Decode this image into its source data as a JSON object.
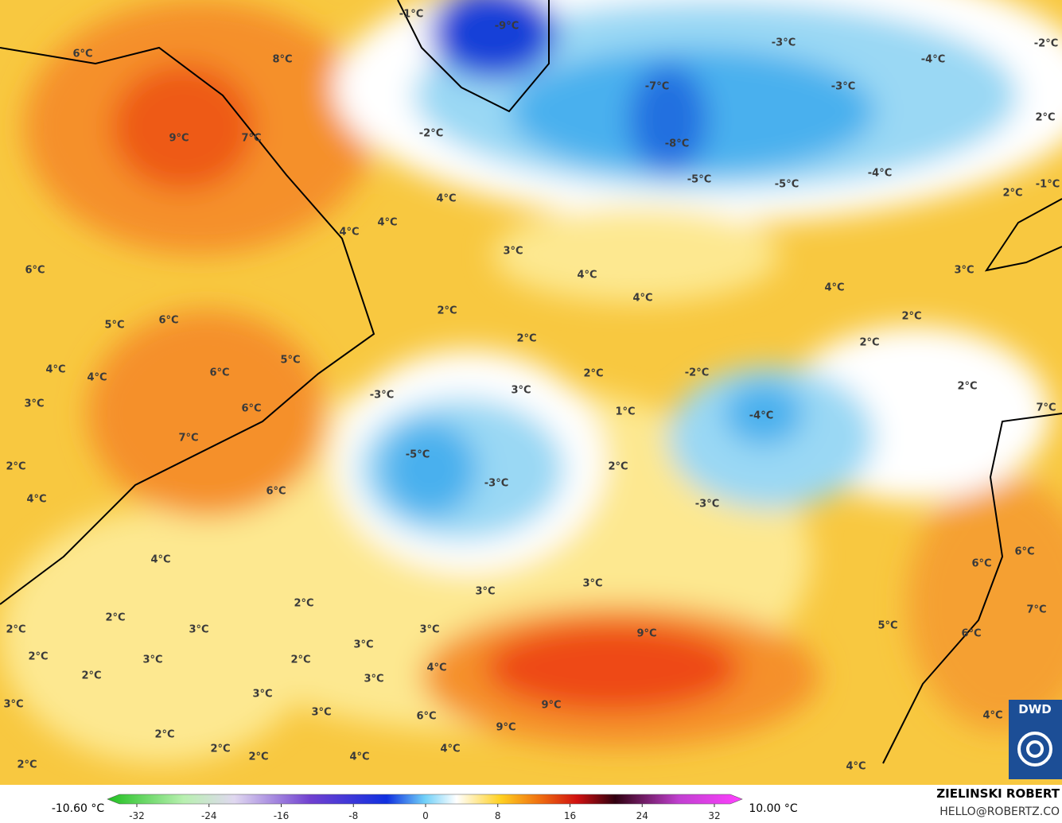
{
  "map": {
    "labels": [
      "-9°C",
      "-1°C",
      "-3°C",
      "-4°C",
      "-2°C",
      "-7°C",
      "-3°C",
      "2°C",
      "-2°C",
      "-8°C",
      "-5°C",
      "-5°C",
      "-4°C",
      "-1°C",
      "2°C",
      "8°C",
      "6°C",
      "9°C",
      "7°C",
      "4°C",
      "4°C",
      "4°C",
      "3°C",
      "4°C",
      "4°C",
      "4°C",
      "3°C",
      "6°C",
      "2°C",
      "2°C",
      "5°C",
      "6°C",
      "2°C",
      "2°C",
      "4°C",
      "4°C",
      "6°C",
      "5°C",
      "2°C",
      "-2°C",
      "3°C",
      "-3°C",
      "2°C",
      "3°C",
      "6°C",
      "1°C",
      "-4°C",
      "7°C",
      "7°C",
      "-5°C",
      "2°C",
      "2°C",
      "-3°C",
      "6°C",
      "4°C",
      "-3°C",
      "4°C",
      "6°C",
      "6°C",
      "3°C",
      "3°C",
      "2°C",
      "2°C",
      "7°C",
      "2°C",
      "3°C",
      "9°C",
      "3°C",
      "5°C",
      "6°C",
      "2°C",
      "3°C",
      "2°C",
      "3°C",
      "4°C",
      "2°C",
      "3°C",
      "3°C",
      "9°C",
      "6°C",
      "3°C",
      "3°C",
      "9°C",
      "4°C",
      "2°C",
      "2°C",
      "4°C",
      "4°C",
      "2°C",
      "2°C",
      "4°C"
    ]
  },
  "colorbar": {
    "min_label": "-10.60 °C",
    "max_label": "10.00 °C",
    "ticks": [
      -32,
      -24,
      -16,
      -8,
      0,
      8,
      16,
      24,
      32
    ]
  },
  "credits": {
    "author": "ZIELINSKI ROBERT",
    "contact": "HELLO@ROBERTZ.CO",
    "logo": "DWD"
  }
}
